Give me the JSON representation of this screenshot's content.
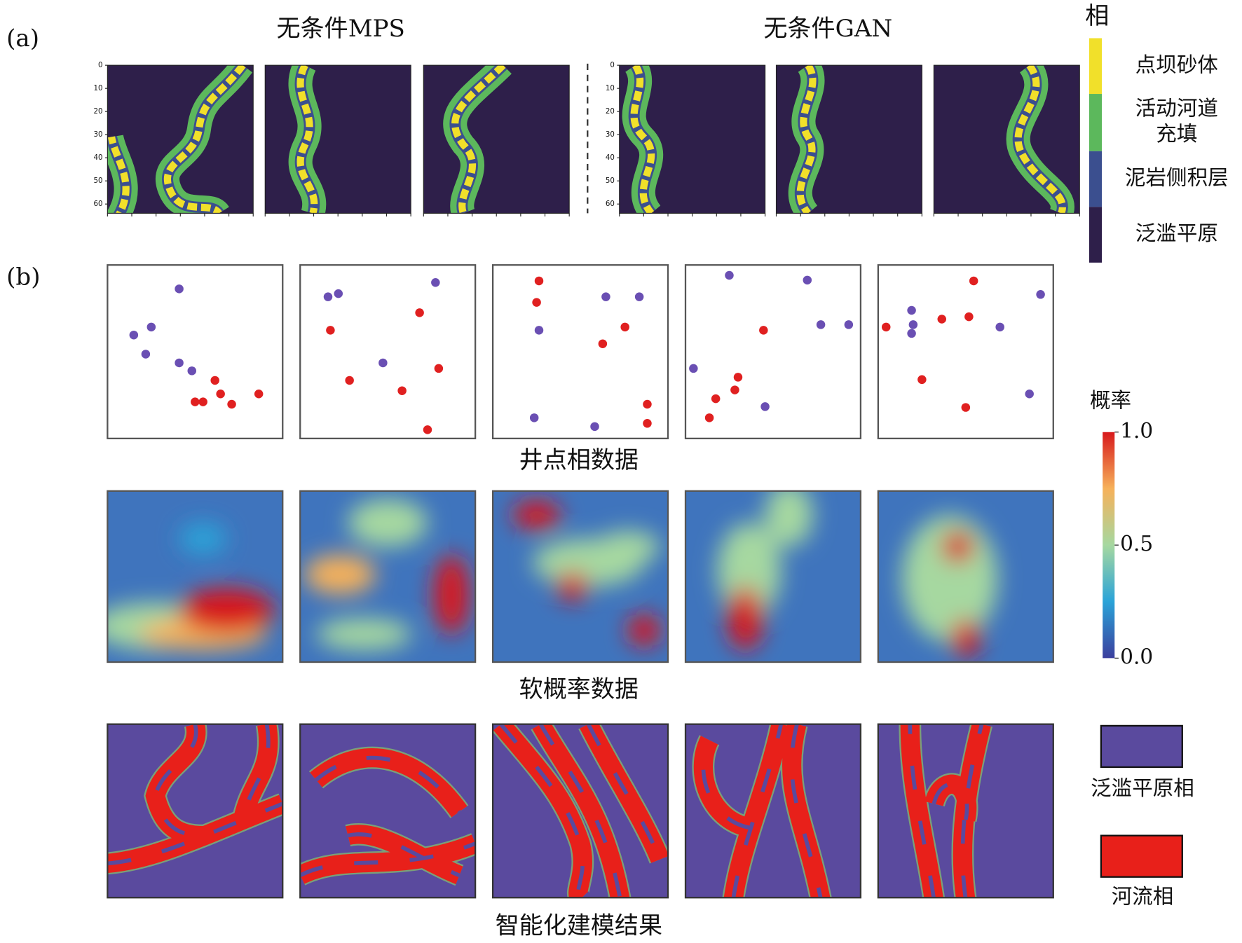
{
  "panel_a": {
    "label": "(a)",
    "group_titles": [
      "无条件MPS",
      "无条件GAN"
    ],
    "yticks": [
      0,
      10,
      20,
      30,
      40,
      50,
      60
    ],
    "legend_title": "相",
    "legend": [
      [
        "点坝砂体"
      ],
      [
        "活动河道",
        "充填"
      ],
      [
        "泥岩侧积层"
      ],
      [
        "泛滥平原"
      ]
    ]
  },
  "panel_b": {
    "label": "(b)",
    "row_captions": [
      "井点相数据",
      "软概率数据",
      "智能化建模结果"
    ],
    "colorbar_title": "概率",
    "colorbar_ticks": [
      {
        "value": 1,
        "label": "1.0"
      },
      {
        "value": 0.5,
        "label": "0.5"
      },
      {
        "value": 0,
        "label": "0.0"
      }
    ],
    "legend": [
      "泛滥平原相",
      "河流相"
    ]
  }
}
